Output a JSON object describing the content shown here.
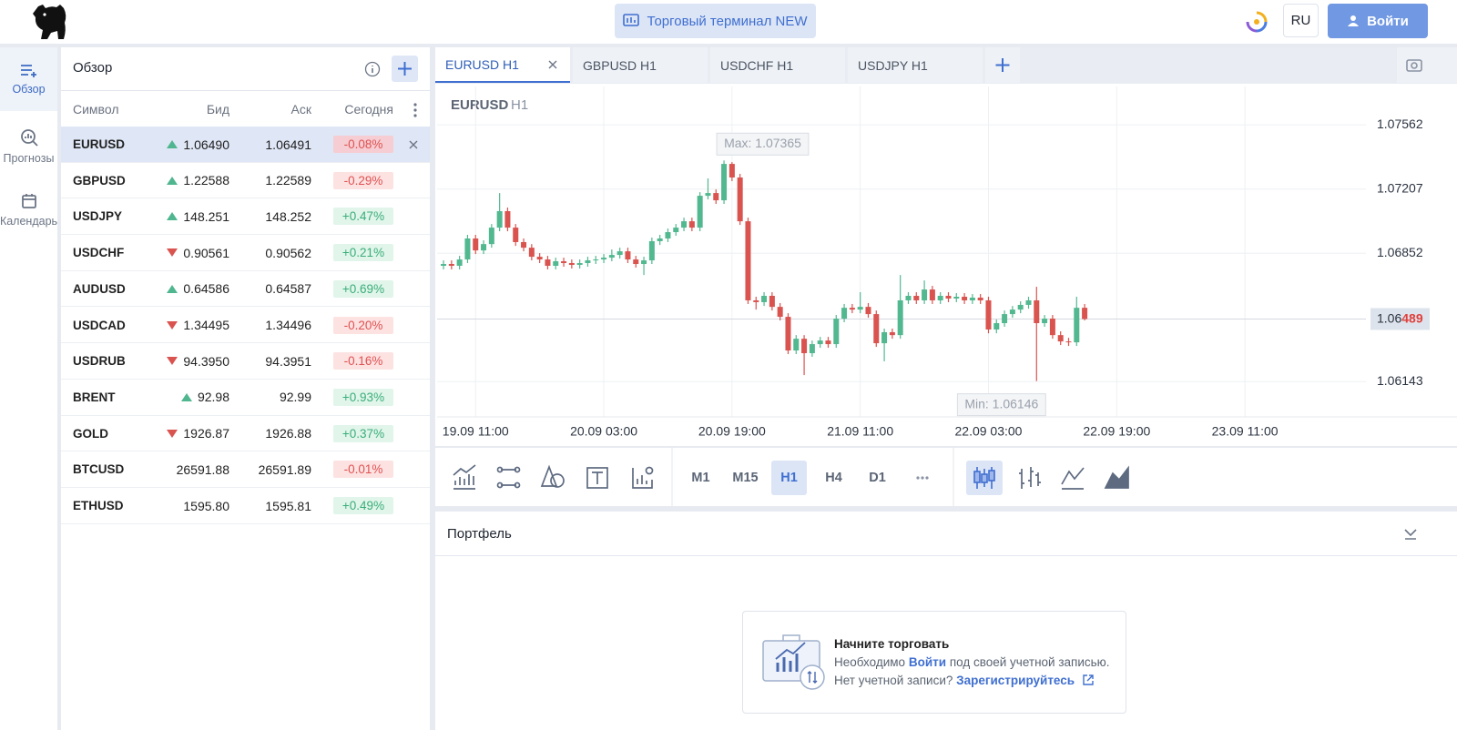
{
  "header": {
    "terminal_button": "Торговый терминал NEW",
    "language": "RU",
    "login": "Войти"
  },
  "sidebar": [
    "Обзор",
    "Прогнозы",
    "Календарь"
  ],
  "watchlist": {
    "title": "Обзор",
    "columns": [
      "Символ",
      "Бид",
      "Аск",
      "Сегодня"
    ],
    "selected": 0,
    "rows": [
      {
        "symbol": "EURUSD",
        "direction": "up",
        "bid": "1.06490",
        "ask": "1.06491",
        "change": "-0.08%"
      },
      {
        "symbol": "GBPUSD",
        "direction": "up",
        "bid": "1.22588",
        "ask": "1.22589",
        "change": "-0.29%"
      },
      {
        "symbol": "USDJPY",
        "direction": "up",
        "bid": "148.251",
        "ask": "148.252",
        "change": "+0.47%"
      },
      {
        "symbol": "USDCHF",
        "direction": "down",
        "bid": "0.90561",
        "ask": "0.90562",
        "change": "+0.21%"
      },
      {
        "symbol": "AUDUSD",
        "direction": "up",
        "bid": "0.64586",
        "ask": "0.64587",
        "change": "+0.69%"
      },
      {
        "symbol": "USDCAD",
        "direction": "down",
        "bid": "1.34495",
        "ask": "1.34496",
        "change": "-0.20%"
      },
      {
        "symbol": "USDRUB",
        "direction": "down",
        "bid": "94.3950",
        "ask": "94.3951",
        "change": "-0.16%"
      },
      {
        "symbol": "BRENT",
        "direction": "up",
        "bid": "92.98",
        "ask": "92.99",
        "change": "+0.93%"
      },
      {
        "symbol": "GOLD",
        "direction": "down",
        "bid": "1926.87",
        "ask": "1926.88",
        "change": "+0.37%"
      },
      {
        "symbol": "BTCUSD",
        "direction": null,
        "bid": "26591.88",
        "ask": "26591.89",
        "change": "-0.01%"
      },
      {
        "symbol": "ETHUSD",
        "direction": null,
        "bid": "1595.80",
        "ask": "1595.81",
        "change": "+0.49%"
      }
    ]
  },
  "tabs": {
    "items": [
      "EURUSD H1",
      "GBPUSD H1",
      "USDCHF H1",
      "USDJPY H1"
    ],
    "active": 0
  },
  "toolbar": {
    "timeframes": [
      "M1",
      "M15",
      "H1",
      "H4",
      "D1"
    ],
    "selected": 2
  },
  "portfolio": {
    "title": "Портфель",
    "empty_title": "Начните торговать",
    "line1_before": "Необходимо",
    "line1_link": "Войти",
    "line1_after": "под своей учетной записью.",
    "line2_before": "Нет учетной записи?",
    "line2_link": "Зарегистрируйтесь"
  },
  "chart_data": {
    "type": "candlestick",
    "symbol": "EURUSD",
    "timeframe": "H1",
    "up_color": "#52b890",
    "down_color": "#d9534f",
    "grid": true,
    "xlim": [
      -0.8,
      115.1
    ],
    "ylim": [
      1.05948,
      1.07774
    ],
    "xticks": [
      {
        "value": 4,
        "label": "19.09 11:00"
      },
      {
        "value": 20,
        "label": "20.09 03:00"
      },
      {
        "value": 36,
        "label": "20.09 19:00"
      },
      {
        "value": 52,
        "label": "21.09 11:00"
      },
      {
        "value": 68,
        "label": "22.09 03:00"
      },
      {
        "value": 84,
        "label": "22.09 19:00"
      },
      {
        "value": 100,
        "label": "23.09 11:00"
      }
    ],
    "yticks": [
      1.07562,
      1.07207,
      1.06852,
      1.06143
    ],
    "last_price": 1.06489,
    "last_price_label": [
      "1.06",
      "489"
    ],
    "max_label": "Max: 1.07365",
    "min_label": "Min: 1.06146",
    "ohlc": [
      [
        1.06783,
        1.06813,
        1.06763,
        1.06793
      ],
      [
        1.06793,
        1.06813,
        1.06763,
        1.06783
      ],
      [
        1.06783,
        1.06838,
        1.06763,
        1.06818
      ],
      [
        1.06818,
        1.06954,
        1.06798,
        1.06934
      ],
      [
        1.06934,
        1.06954,
        1.06848,
        1.06868
      ],
      [
        1.06868,
        1.06924,
        1.06848,
        1.06903
      ],
      [
        1.06903,
        1.07014,
        1.06883,
        1.06994
      ],
      [
        1.06994,
        1.07185,
        1.06974,
        1.07085
      ],
      [
        1.07085,
        1.07105,
        1.06974,
        1.06994
      ],
      [
        1.06994,
        1.07014,
        1.06893,
        1.06914
      ],
      [
        1.06914,
        1.06934,
        1.06863,
        1.06883
      ],
      [
        1.06883,
        1.06903,
        1.06813,
        1.06833
      ],
      [
        1.06833,
        1.06853,
        1.06798,
        1.06818
      ],
      [
        1.06818,
        1.06838,
        1.06763,
        1.06783
      ],
      [
        1.06783,
        1.06828,
        1.06763,
        1.06808
      ],
      [
        1.06808,
        1.06828,
        1.06778,
        1.06798
      ],
      [
        1.06798,
        1.06818,
        1.06768,
        1.06788
      ],
      [
        1.06788,
        1.06818,
        1.06768,
        1.06798
      ],
      [
        1.06798,
        1.06833,
        1.06778,
        1.06813
      ],
      [
        1.06813,
        1.06838,
        1.06793,
        1.06818
      ],
      [
        1.06818,
        1.06848,
        1.06798,
        1.06828
      ],
      [
        1.06828,
        1.06873,
        1.06808,
        1.06843
      ],
      [
        1.06843,
        1.06883,
        1.06823,
        1.06863
      ],
      [
        1.06863,
        1.06883,
        1.06798,
        1.06818
      ],
      [
        1.06818,
        1.06838,
        1.06773,
        1.06793
      ],
      [
        1.06793,
        1.06833,
        1.06732,
        1.06813
      ],
      [
        1.06813,
        1.06939,
        1.06793,
        1.06919
      ],
      [
        1.06919,
        1.06954,
        1.06898,
        1.06934
      ],
      [
        1.06934,
        1.06989,
        1.06914,
        1.06969
      ],
      [
        1.06969,
        1.07014,
        1.06949,
        1.06994
      ],
      [
        1.06994,
        1.07049,
        1.06974,
        1.07029
      ],
      [
        1.07029,
        1.07049,
        1.06974,
        1.06994
      ],
      [
        1.06994,
        1.0719,
        1.06974,
        1.0717
      ],
      [
        1.0717,
        1.07266,
        1.0715,
        1.07185
      ],
      [
        1.07185,
        1.07205,
        1.07125,
        1.07145
      ],
      [
        1.07145,
        1.07365,
        1.07125,
        1.07346
      ],
      [
        1.07346,
        1.07356,
        1.07251,
        1.07271
      ],
      [
        1.07271,
        1.07291,
        1.07009,
        1.07029
      ],
      [
        1.07029,
        1.07049,
        1.06572,
        1.06592
      ],
      [
        1.06592,
        1.06612,
        1.06541,
        1.06582
      ],
      [
        1.06582,
        1.06637,
        1.06561,
        1.06617
      ],
      [
        1.06617,
        1.06637,
        1.06536,
        1.06556
      ],
      [
        1.06556,
        1.06577,
        1.06481,
        1.06501
      ],
      [
        1.06501,
        1.06521,
        1.06295,
        1.06315
      ],
      [
        1.06315,
        1.064,
        1.06295,
        1.0638
      ],
      [
        1.0638,
        1.064,
        1.06179,
        1.063
      ],
      [
        1.063,
        1.0637,
        1.0628,
        1.0635
      ],
      [
        1.0635,
        1.0639,
        1.0633,
        1.0637
      ],
      [
        1.0637,
        1.0639,
        1.0633,
        1.0635
      ],
      [
        1.0635,
        1.06511,
        1.0633,
        1.06491
      ],
      [
        1.06491,
        1.06572,
        1.06471,
        1.06551
      ],
      [
        1.06551,
        1.06572,
        1.06521,
        1.06541
      ],
      [
        1.06541,
        1.06637,
        1.06521,
        1.06556
      ],
      [
        1.06556,
        1.06577,
        1.06496,
        1.06516
      ],
      [
        1.06516,
        1.06536,
        1.06335,
        1.06355
      ],
      [
        1.06355,
        1.06436,
        1.06255,
        1.06416
      ],
      [
        1.06416,
        1.06436,
        1.0638,
        1.064
      ],
      [
        1.064,
        1.06732,
        1.0638,
        1.06592
      ],
      [
        1.06592,
        1.06637,
        1.06572,
        1.06617
      ],
      [
        1.06617,
        1.06637,
        1.06572,
        1.06592
      ],
      [
        1.06592,
        1.06702,
        1.06572,
        1.06652
      ],
      [
        1.06652,
        1.06672,
        1.06572,
        1.06592
      ],
      [
        1.06592,
        1.06637,
        1.06572,
        1.06617
      ],
      [
        1.06617,
        1.06637,
        1.06582,
        1.06602
      ],
      [
        1.06602,
        1.06632,
        1.06582,
        1.06612
      ],
      [
        1.06612,
        1.06632,
        1.06572,
        1.06592
      ],
      [
        1.06592,
        1.06627,
        1.06572,
        1.06607
      ],
      [
        1.06607,
        1.06627,
        1.06572,
        1.06592
      ],
      [
        1.06592,
        1.06612,
        1.0641,
        1.06431
      ],
      [
        1.06431,
        1.06486,
        1.0641,
        1.06466
      ],
      [
        1.06466,
        1.06536,
        1.06446,
        1.06516
      ],
      [
        1.06516,
        1.06561,
        1.06496,
        1.06541
      ],
      [
        1.06541,
        1.06587,
        1.06521,
        1.06567
      ],
      [
        1.06567,
        1.06612,
        1.06546,
        1.06592
      ],
      [
        1.06592,
        1.06667,
        1.06146,
        1.06466
      ],
      [
        1.06466,
        1.06511,
        1.06446,
        1.06491
      ],
      [
        1.06491,
        1.06511,
        1.0638,
        1.064
      ],
      [
        1.064,
        1.06421,
        1.06345,
        1.06365
      ],
      [
        1.06365,
        1.06385,
        1.0634,
        1.0636
      ],
      [
        1.0636,
        1.06612,
        1.0634,
        1.06551
      ],
      [
        1.06551,
        1.06572,
        1.06481,
        1.06489
      ]
    ]
  }
}
